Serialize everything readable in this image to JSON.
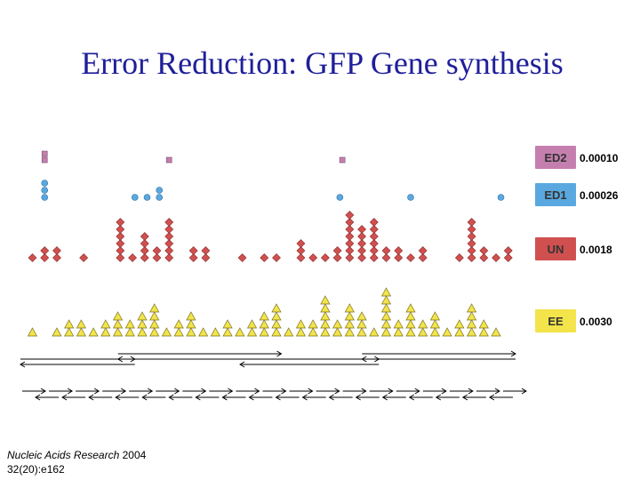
{
  "title": "Error Reduction: GFP Gene synthesis",
  "citation": {
    "journal": "Nucleic Acids Research",
    "year": "2004",
    "issue": "32(20):e162"
  },
  "chart_data": {
    "type": "scatter",
    "description_units": "positions along the synthesized gene (0-100 scale); stack = number of errors found at that position",
    "series": [
      {
        "name": "ED2",
        "rate": "0.00010",
        "color": "#c57fae",
        "marker": "square",
        "positions": [
          3.5,
          29,
          64.5
        ],
        "counts": [
          2,
          1,
          1
        ]
      },
      {
        "name": "ED1",
        "rate": "0.00026",
        "color": "#5aa8e0",
        "marker": "circle",
        "positions": [
          3.5,
          22,
          24.5,
          27,
          64,
          78.5,
          97
        ],
        "counts": [
          3,
          1,
          1,
          2,
          1,
          1,
          1
        ]
      },
      {
        "name": "UN",
        "rate": "0.0018",
        "color": "#d05050",
        "marker": "diamond",
        "positions": [
          1,
          3.5,
          6,
          11.5,
          19,
          21.5,
          24,
          26.5,
          29,
          34,
          36.5,
          44,
          48.5,
          51,
          56,
          58.5,
          61,
          63.5,
          66,
          68.5,
          71,
          73.5,
          76,
          78.5,
          81,
          88.5,
          91,
          93.5,
          96,
          98.5
        ],
        "counts": [
          1,
          2,
          2,
          1,
          6,
          1,
          4,
          2,
          6,
          2,
          2,
          1,
          1,
          1,
          3,
          1,
          1,
          2,
          7,
          5,
          6,
          2,
          2,
          1,
          2,
          1,
          6,
          2,
          1,
          2
        ]
      },
      {
        "name": "EE",
        "rate": "0.0030",
        "color": "#f2e44a",
        "marker": "triangle",
        "positions": [
          1,
          6,
          8.5,
          11,
          13.5,
          16,
          18.5,
          21,
          23.5,
          26,
          28.5,
          31,
          33.5,
          36,
          38.5,
          41,
          43.5,
          46,
          48.5,
          51,
          53.5,
          56,
          58.5,
          61,
          63.5,
          66,
          68.5,
          71,
          73.5,
          76,
          78.5,
          81,
          83.5,
          86,
          88.5,
          91,
          93.5,
          96
        ],
        "counts": [
          1,
          1,
          2,
          2,
          1,
          2,
          3,
          2,
          3,
          4,
          1,
          2,
          3,
          1,
          1,
          2,
          1,
          2,
          3,
          4,
          1,
          2,
          2,
          5,
          2,
          4,
          3,
          1,
          6,
          2,
          4,
          2,
          3,
          1,
          2,
          4,
          2,
          1
        ]
      }
    ],
    "assembly_lines": {
      "level1": [
        [
          0,
          22
        ],
        [
          0,
          22
        ],
        [
          20,
          52
        ],
        [
          20,
          52
        ],
        [
          45,
          72
        ],
        [
          45,
          72
        ],
        [
          70,
          100
        ],
        [
          70,
          100
        ]
      ],
      "oligo_count": 19
    }
  }
}
